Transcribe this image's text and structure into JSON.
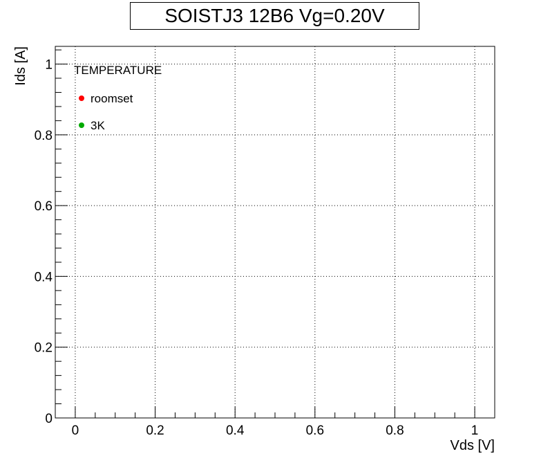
{
  "chart_data": {
    "type": "scatter",
    "title": "SOISTJ3 12B6 Vg=0.20V",
    "xlabel": "Vds [V]",
    "ylabel": "Ids [A]",
    "xlim": [
      -0.05,
      1.05
    ],
    "ylim": [
      0,
      1.05
    ],
    "x_ticks": [
      "0",
      "0.2",
      "0.4",
      "0.6",
      "0.8",
      "1"
    ],
    "y_ticks": [
      "0",
      "0.2",
      "0.4",
      "0.6",
      "0.8",
      "1"
    ],
    "grid": true,
    "legend": {
      "title": "TEMPERATURE",
      "placement": "top-left"
    },
    "series": [
      {
        "name": "roomset",
        "color": "#ff0000",
        "x": [],
        "y": []
      },
      {
        "name": "3K",
        "color": "#00aa00",
        "x": [],
        "y": []
      }
    ]
  }
}
